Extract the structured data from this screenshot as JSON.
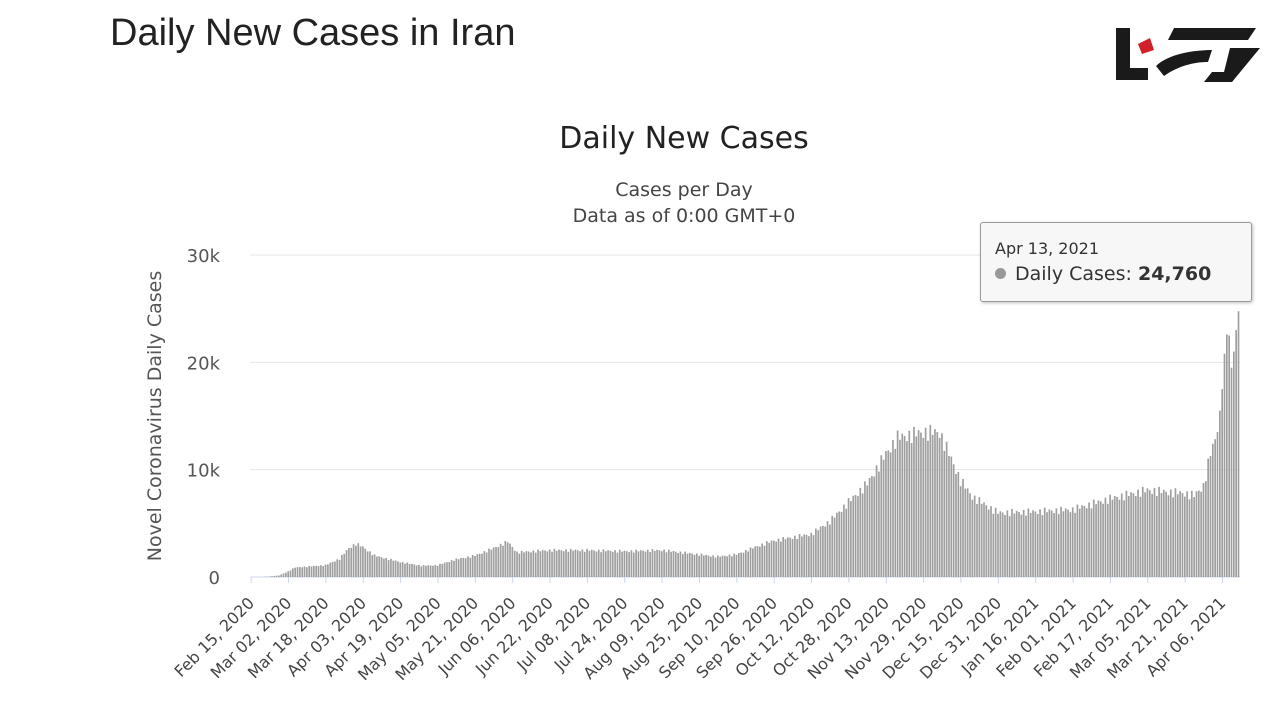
{
  "page": {
    "heading": "Daily New Cases in Iran"
  },
  "logo": {
    "name": "brand-logo",
    "color": "#1a1a1a",
    "accent": "#d0202a"
  },
  "tooltip": {
    "date": "Apr 13, 2021",
    "label": "Daily Cases:",
    "value": "24,760",
    "dot_color": "#999999"
  },
  "chart_data": {
    "type": "bar",
    "title": "Daily New Cases",
    "subtitle_lines": [
      "Cases per Day",
      "Data as of 0:00 GMT+0"
    ],
    "ylabel": "Novel Coronavirus Daily Cases",
    "ylim": [
      0,
      30000
    ],
    "yticks": [
      0,
      10000,
      20000,
      30000
    ],
    "ytick_labels": [
      "0",
      "10k",
      "20k",
      "30k"
    ],
    "xtick_labels": [
      "Feb 15, 2020",
      "Mar 02, 2020",
      "Mar 18, 2020",
      "Apr 03, 2020",
      "Apr 19, 2020",
      "May 05, 2020",
      "May 21, 2020",
      "Jun 06, 2020",
      "Jun 22, 2020",
      "Jul 08, 2020",
      "Jul 24, 2020",
      "Aug 09, 2020",
      "Aug 25, 2020",
      "Sep 10, 2020",
      "Sep 26, 2020",
      "Oct 12, 2020",
      "Oct 28, 2020",
      "Nov 13, 2020",
      "Nov 29, 2020",
      "Dec 15, 2020",
      "Dec 31, 2020",
      "Jan 16, 2021",
      "Feb 01, 2021",
      "Feb 17, 2021",
      "Mar 05, 2021",
      "Mar 21, 2021",
      "Apr 06, 2021"
    ],
    "first_date": "Feb 15, 2020",
    "last_date": "Apr 13, 2021",
    "grid": true,
    "bar_color": "#9e9e9e",
    "grid_color": "#e6e6e6",
    "baseline_color": "#ccd6eb",
    "series_profile": {
      "name": "Daily Cases",
      "description": "Daily new cases from Feb 15, 2020 to Apr 13, 2021 (one bar per day); values listed at checkpoint dates, interpolated between",
      "checkpoints": [
        [
          "Feb 15, 2020",
          0
        ],
        [
          "Feb 19, 2020",
          0
        ],
        [
          "Feb 22, 2020",
          28
        ],
        [
          "Feb 27, 2020",
          140
        ],
        [
          "Mar 02, 2020",
          520
        ],
        [
          "Mar 05, 2020",
          890
        ],
        [
          "Mar 12, 2020",
          1000
        ],
        [
          "Mar 18, 2020",
          1100
        ],
        [
          "Mar 24, 2020",
          1700
        ],
        [
          "Mar 28, 2020",
          2700
        ],
        [
          "Mar 31, 2020",
          3100
        ],
        [
          "Apr 03, 2020",
          2800
        ],
        [
          "Apr 08, 2020",
          2000
        ],
        [
          "Apr 19, 2020",
          1400
        ],
        [
          "Apr 28, 2020",
          1050
        ],
        [
          "May 05, 2020",
          1100
        ],
        [
          "May 12, 2020",
          1600
        ],
        [
          "May 21, 2020",
          2000
        ],
        [
          "May 28, 2020",
          2600
        ],
        [
          "Jun 04, 2020",
          3300
        ],
        [
          "Jun 08, 2020",
          2300
        ],
        [
          "Jun 22, 2020",
          2500
        ],
        [
          "Jul 08, 2020",
          2500
        ],
        [
          "Jul 24, 2020",
          2400
        ],
        [
          "Aug 09, 2020",
          2500
        ],
        [
          "Aug 25, 2020",
          2100
        ],
        [
          "Sep 02, 2020",
          1900
        ],
        [
          "Sep 10, 2020",
          2100
        ],
        [
          "Sep 18, 2020",
          2800
        ],
        [
          "Sep 26, 2020",
          3400
        ],
        [
          "Oct 12, 2020",
          4000
        ],
        [
          "Oct 20, 2020",
          5200
        ],
        [
          "Oct 28, 2020",
          7000
        ],
        [
          "Nov 05, 2020",
          8700
        ],
        [
          "Nov 13, 2020",
          11500
        ],
        [
          "Nov 18, 2020",
          13000
        ],
        [
          "Nov 29, 2020",
          13500
        ],
        [
          "Dec 06, 2020",
          13500
        ],
        [
          "Dec 10, 2020",
          11500
        ],
        [
          "Dec 15, 2020",
          9000
        ],
        [
          "Dec 20, 2020",
          7500
        ],
        [
          "Dec 31, 2020",
          6000
        ],
        [
          "Jan 16, 2021",
          6100
        ],
        [
          "Feb 01, 2021",
          6300
        ],
        [
          "Feb 17, 2021",
          7300
        ],
        [
          "Mar 05, 2021",
          8100
        ],
        [
          "Mar 21, 2021",
          7800
        ],
        [
          "Mar 25, 2021",
          7600
        ],
        [
          "Mar 29, 2021",
          8500
        ],
        [
          "Apr 01, 2021",
          11500
        ],
        [
          "Apr 04, 2021",
          13500
        ],
        [
          "Apr 06, 2021",
          17500
        ],
        [
          "Apr 07, 2021",
          20800
        ],
        [
          "Apr 08, 2021",
          22600
        ],
        [
          "Apr 09, 2021",
          22500
        ],
        [
          "Apr 10, 2021",
          19500
        ],
        [
          "Apr 11, 2021",
          21000
        ],
        [
          "Apr 12, 2021",
          23000
        ],
        [
          "Apr 13, 2021",
          24760
        ]
      ]
    }
  }
}
